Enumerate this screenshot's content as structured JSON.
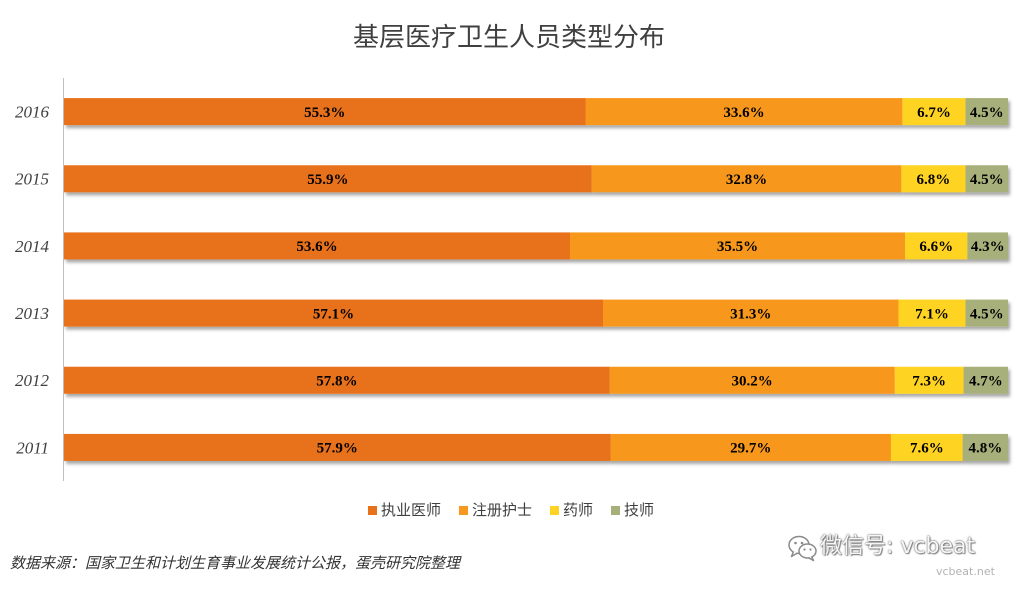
{
  "chart_data": {
    "type": "bar",
    "orientation": "horizontal",
    "stacked": true,
    "percent": true,
    "title": "基层医疗卫生人员类型分布",
    "categories": [
      "2016",
      "2015",
      "2014",
      "2013",
      "2012",
      "2011"
    ],
    "series": [
      {
        "name": "执业医师",
        "color": "#E8711C",
        "values": [
          55.3,
          55.9,
          53.6,
          57.1,
          57.8,
          57.9
        ]
      },
      {
        "name": "注册护士",
        "color": "#F7981F",
        "values": [
          33.6,
          32.8,
          35.5,
          31.3,
          30.2,
          29.7
        ]
      },
      {
        "name": "药师",
        "color": "#FFD324",
        "values": [
          6.7,
          6.8,
          6.6,
          7.1,
          7.3,
          7.6
        ]
      },
      {
        "name": "技师",
        "color": "#A7B07A",
        "values": [
          4.5,
          4.5,
          4.3,
          4.5,
          4.7,
          4.8
        ]
      }
    ],
    "unit": "%",
    "xlim": [
      0,
      100
    ],
    "data_labels": true,
    "grid": false,
    "legend": "bottom"
  },
  "source_note": "数据来源：国家卫生和计划生育事业发展统计公报，蛋壳研究院整理",
  "watermark": {
    "icon": "wechat-icon",
    "wechat_id": "微信号: vcbeat",
    "site": "vcbeat.net"
  }
}
